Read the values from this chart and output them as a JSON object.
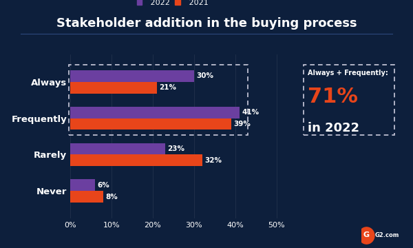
{
  "title": "Stakeholder addition in the buying process",
  "background_color": "#0d1f3c",
  "bar_height": 0.32,
  "categories": [
    "Always",
    "Frequently",
    "Rarely",
    "Never"
  ],
  "values_2022": [
    30,
    41,
    23,
    6
  ],
  "values_2021": [
    21,
    39,
    32,
    8
  ],
  "color_2022": "#6b3fa0",
  "color_2021": "#e8451a",
  "text_color": "#ffffff",
  "title_color": "#ffffff",
  "label_color": "#ffffff",
  "annotation_label": "Always + Frequently:",
  "annotation_value": "71%",
  "annotation_suffix": "in 2022",
  "annotation_color": "#e8451a",
  "annotation_text_color": "#ffffff",
  "xlim": [
    0,
    55
  ],
  "xticks": [
    0,
    10,
    20,
    30,
    40,
    50
  ],
  "legend_2022": "2022",
  "legend_2021": "2021",
  "dashed_box_color": "#ffffff"
}
